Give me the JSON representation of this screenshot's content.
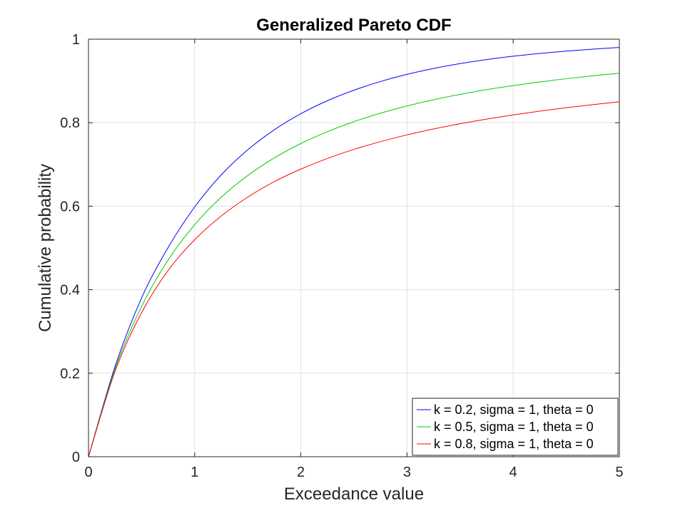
{
  "chart_data": {
    "type": "line",
    "title": "Generalized Pareto CDF",
    "xlabel": "Exceedance value",
    "ylabel": "Cumulative probability",
    "xlim": [
      0,
      5
    ],
    "ylim": [
      0,
      1
    ],
    "xticks": [
      0,
      1,
      2,
      3,
      4,
      5
    ],
    "yticks": [
      0,
      0.2,
      0.4,
      0.6,
      0.8,
      1
    ],
    "xtick_labels": [
      "0",
      "1",
      "2",
      "3",
      "4",
      "5"
    ],
    "ytick_labels": [
      "0",
      "0.2",
      "0.4",
      "0.6",
      "0.8",
      "1"
    ],
    "grid": true,
    "legend_position": "bottom-right",
    "x": [
      0,
      0.25,
      0.5,
      0.75,
      1,
      1.25,
      1.5,
      1.75,
      2,
      2.25,
      2.5,
      2.75,
      3,
      3.25,
      3.5,
      3.75,
      4,
      4.25,
      4.5,
      4.75,
      5
    ],
    "series": [
      {
        "name": "k = 0.2, sigma = 1, theta = 0",
        "color": "#0000ff",
        "values": [
          0,
          0.2158,
          0.3802,
          0.501,
          0.5981,
          0.6749,
          0.7351,
          0.7829,
          0.8215,
          0.8526,
          0.8778,
          0.8986,
          0.9157,
          0.9298,
          0.9415,
          0.9512,
          0.9592,
          0.9659,
          0.9715,
          0.9762,
          0.9802
        ]
      },
      {
        "name": "k = 0.5, sigma = 1, theta = 0",
        "color": "#00cc00",
        "values": [
          0,
          0.2099,
          0.36,
          0.4711,
          0.5556,
          0.6213,
          0.6735,
          0.7156,
          0.75,
          0.7785,
          0.8025,
          0.8227,
          0.84,
          0.8549,
          0.8678,
          0.8792,
          0.8889,
          0.8976,
          0.9054,
          0.9123,
          0.9184
        ]
      },
      {
        "name": "k = 0.8, sigma = 1, theta = 0",
        "color": "#ff0000",
        "values": [
          0,
          0.2044,
          0.3449,
          0.4462,
          0.5196,
          0.5764,
          0.6218,
          0.6589,
          0.6888,
          0.7143,
          0.736,
          0.7546,
          0.7708,
          0.785,
          0.7975,
          0.8087,
          0.8187,
          0.8277,
          0.8359,
          0.8433,
          0.8501
        ]
      }
    ]
  }
}
